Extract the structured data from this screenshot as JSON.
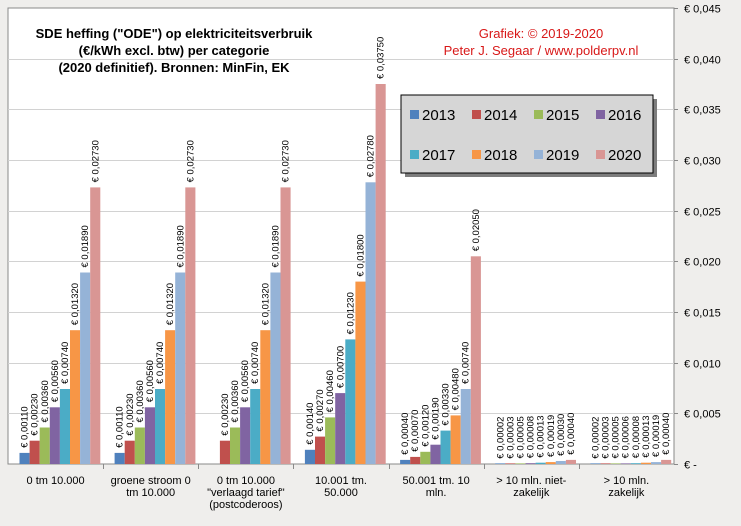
{
  "chart_data": {
    "type": "bar",
    "title_lines": [
      "SDE heffing (\"ODE\")  op elektriciteitsverbruik",
      "(€/kWh  excl. btw) per categorie",
      "(2020 definitief). Bronnen: MinFin, EK"
    ],
    "credit_lines": [
      "Grafiek:  © 2019-2020",
      "Peter J. Segaar / www.polderpv.nl"
    ],
    "categories": [
      [
        "0 tm 10.000"
      ],
      [
        "groene stroom 0",
        "tm 10.000"
      ],
      [
        "0 tm 10.000",
        "\"verlaagd tarief\"",
        "(postcoderoos)"
      ],
      [
        "10.001 tm.",
        "50.000"
      ],
      [
        "50.001 tm. 10",
        "mln."
      ],
      [
        "> 10 mln. niet-",
        "zakelijk"
      ],
      [
        "> 10 mln.",
        "zakelijk"
      ]
    ],
    "series": [
      {
        "name": "2013",
        "color": "#4f81bd",
        "values": [
          0.0011,
          0.0011,
          null,
          0.0014,
          0.0004,
          2e-05,
          2e-05
        ]
      },
      {
        "name": "2014",
        "color": "#c0504d",
        "values": [
          0.0023,
          0.0023,
          0.0023,
          0.0027,
          0.0007,
          3e-05,
          3e-05
        ]
      },
      {
        "name": "2015",
        "color": "#9bbb59",
        "values": [
          0.0036,
          0.0036,
          0.0036,
          0.0046,
          0.0012,
          5e-05,
          5e-05
        ]
      },
      {
        "name": "2016",
        "color": "#8064a2",
        "values": [
          0.0056,
          0.0056,
          0.0056,
          0.007,
          0.0019,
          8e-05,
          6e-05
        ]
      },
      {
        "name": "2017",
        "color": "#4bacc6",
        "values": [
          0.0074,
          0.0074,
          0.0074,
          0.0123,
          0.0033,
          0.00013,
          8e-05
        ]
      },
      {
        "name": "2018",
        "color": "#f79646",
        "values": [
          0.0132,
          0.0132,
          0.0132,
          0.018,
          0.0048,
          0.00019,
          0.00013
        ]
      },
      {
        "name": "2019",
        "color": "#95b3d7",
        "values": [
          0.0189,
          0.0189,
          0.0189,
          0.0278,
          0.0074,
          0.0003,
          0.00019
        ]
      },
      {
        "name": "2020",
        "color": "#d99694",
        "values": [
          0.0273,
          0.0273,
          0.0273,
          0.0375,
          0.0205,
          0.0004,
          0.0004
        ]
      }
    ],
    "value_labels": [
      [
        "€ 0,00110",
        "€ 0,00230",
        "€ 0,00360",
        "€ 0,00560",
        "€ 0,00740",
        "€ 0,01320",
        "€ 0,01890",
        "€ 0,02730"
      ],
      [
        "€ 0,00110",
        "€ 0,00230",
        "€ 0,00360",
        "€ 0,00560",
        "€ 0,00740",
        "€ 0,01320",
        "€ 0,01890",
        "€ 0,02730"
      ],
      [
        null,
        "€ 0,00230",
        "€ 0,00360",
        "€ 0,00560",
        "€ 0,00740",
        "€ 0,01320",
        "€ 0,01890",
        "€ 0,02730"
      ],
      [
        "€ 0,00140",
        "€ 0,00270",
        "€ 0,00460",
        "€ 0,00700",
        "€ 0,01230",
        "€ 0,01800",
        "€ 0,02780",
        "€ 0,03750"
      ],
      [
        "€ 0,00040",
        "€ 0,00070",
        "€ 0,00120",
        "€ 0,00190",
        "€ 0,00330",
        "€ 0,00480",
        "€ 0,00740",
        "€ 0,02050"
      ],
      [
        "€ 0,00002",
        "€ 0,00003",
        "€ 0,00005",
        "€ 0,00008",
        "€ 0,00013",
        "€ 0,00019",
        "€ 0,00030",
        "€ 0,00040"
      ],
      [
        "€ 0,00002",
        "€ 0,00003",
        "€ 0,00005",
        "€ 0,00006",
        "€ 0,00008",
        "€ 0,00013",
        "€ 0,00019",
        "€ 0,00040"
      ]
    ],
    "y_ticks": [
      0,
      0.005,
      0.01,
      0.015,
      0.02,
      0.025,
      0.03,
      0.035,
      0.04,
      0.045
    ],
    "y_tick_labels": [
      "€ -",
      "€ 0,005",
      "€ 0,010",
      "€ 0,015",
      "€ 0,020",
      "€ 0,025",
      "€ 0,030",
      "€ 0,035",
      "€ 0,040",
      "€ 0,045"
    ],
    "ylim": [
      0,
      0.045
    ],
    "y_axis_side": "right",
    "grid": true,
    "legend_position": "upper-right"
  }
}
